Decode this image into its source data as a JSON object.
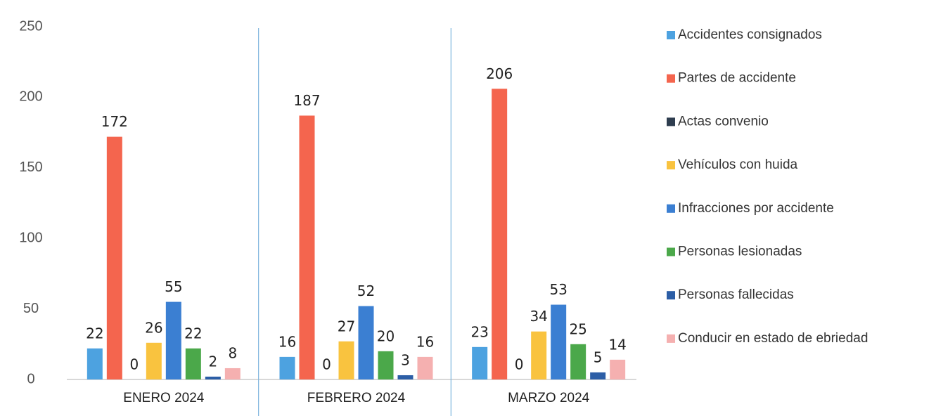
{
  "chart_data": {
    "type": "bar",
    "categories": [
      "ENERO 2024",
      "FEBRERO 2024",
      "MARZO 2024"
    ],
    "series": [
      {
        "name": "Accidentes consignados",
        "color": "#4da2e0",
        "values": [
          22,
          16,
          23
        ]
      },
      {
        "name": "Partes de accidente",
        "color": "#f4654e",
        "values": [
          172,
          187,
          206
        ]
      },
      {
        "name": "Actas convenio",
        "color": "#2e3d4f",
        "values": [
          0,
          0,
          0
        ]
      },
      {
        "name": "Vehículos con huida",
        "color": "#f9c33f",
        "values": [
          26,
          27,
          34
        ]
      },
      {
        "name": "Infracciones por accidente",
        "color": "#3b7fd2",
        "values": [
          55,
          52,
          53
        ]
      },
      {
        "name": "Personas lesionadas",
        "color": "#4ba84a",
        "values": [
          22,
          20,
          25
        ]
      },
      {
        "name": "Personas fallecidas",
        "color": "#2c5ea6",
        "values": [
          2,
          3,
          5
        ]
      },
      {
        "name": "Conducir en estado de ebriedad",
        "color": "#f5b0b0",
        "values": [
          8,
          16,
          14
        ]
      }
    ],
    "ylim": [
      0,
      250
    ],
    "yticks": [
      0,
      50,
      100,
      150,
      200,
      250
    ],
    "grid": false,
    "legend": "right"
  }
}
